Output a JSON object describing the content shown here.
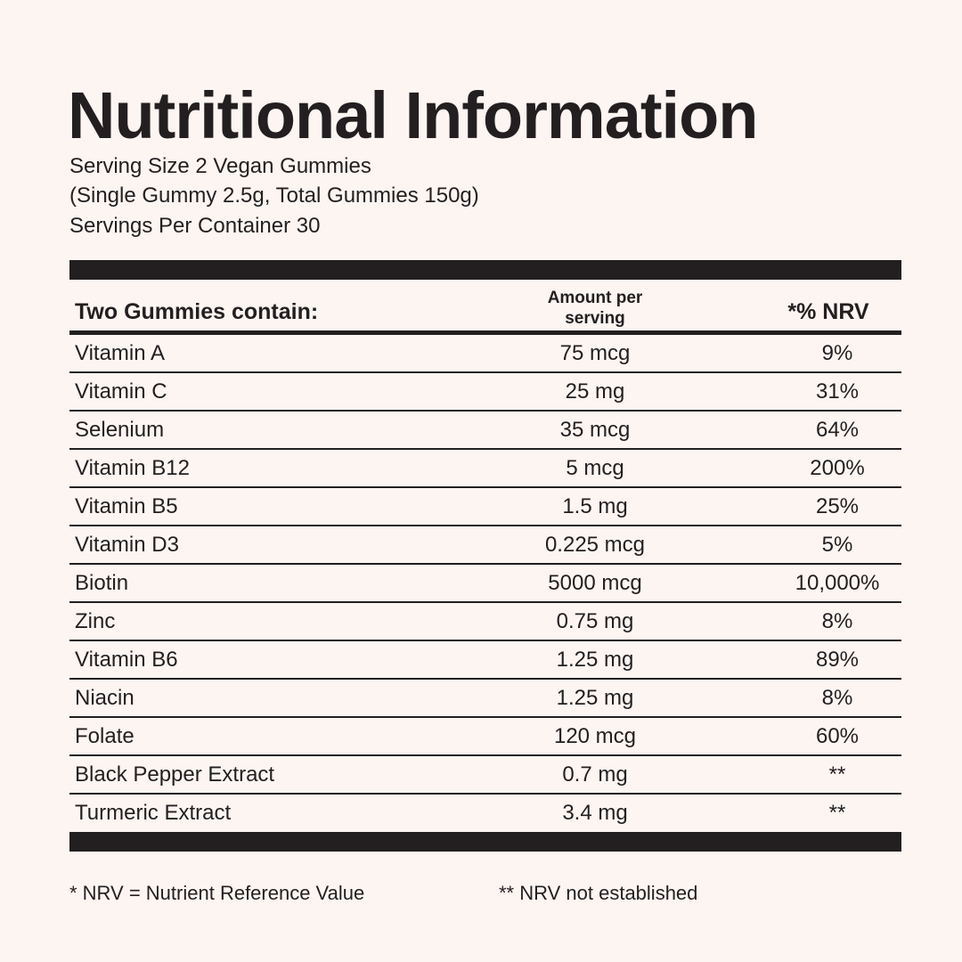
{
  "header": {
    "title": "Nutritional Information",
    "serving_lines": [
      "Serving Size 2 Vegan Gummies",
      "(Single Gummy 2.5g, Total Gummies 150g)",
      "Servings Per Container 30"
    ]
  },
  "table": {
    "columns": [
      "Two Gummies contain:",
      "Amount per serving",
      "*% NRV"
    ],
    "rows": [
      [
        "Vitamin A",
        "75 mcg",
        "9%"
      ],
      [
        "Vitamin C",
        "25 mg",
        "31%"
      ],
      [
        "Selenium",
        "35 mcg",
        "64%"
      ],
      [
        "Vitamin B12",
        "5 mcg",
        "200%"
      ],
      [
        "Vitamin B5",
        "1.5 mg",
        "25%"
      ],
      [
        "Vitamin D3",
        "0.225 mcg",
        "5%"
      ],
      [
        "Biotin",
        "5000 mcg",
        "10,000%"
      ],
      [
        "Zinc",
        "0.75 mg",
        "8%"
      ],
      [
        "Vitamin B6",
        "1.25 mg",
        "89%"
      ],
      [
        "Niacin",
        "1.25 mg",
        "8%"
      ],
      [
        "Folate",
        "120 mcg",
        "60%"
      ],
      [
        "Black Pepper Extract",
        "0.7 mg",
        "**"
      ],
      [
        "Turmeric Extract",
        "3.4 mg",
        "**"
      ]
    ]
  },
  "footnotes": [
    "* NRV = Nutrient Reference Value",
    "** NRV not established"
  ]
}
